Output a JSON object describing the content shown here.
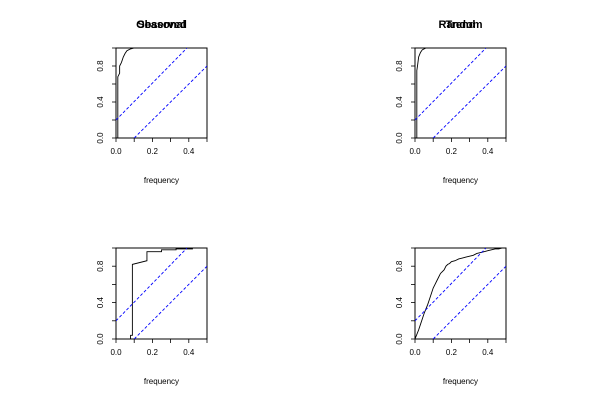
{
  "chart_data": [
    {
      "type": "line",
      "title": "Observed",
      "xlabel": "frequency",
      "ylabel": "",
      "xlim": [
        0,
        0.5
      ],
      "ylim": [
        0,
        1
      ],
      "xticks": [
        "0.0",
        "0.2",
        "0.4"
      ],
      "yticks": [
        "0.0",
        "0.4",
        "0.8"
      ],
      "grid": false,
      "series": [
        {
          "style": "solid",
          "color": "#000000",
          "x": [
            0,
            0.01,
            0.01,
            0.02,
            0.02,
            0.03,
            0.04,
            0.05,
            0.06,
            0.08,
            0.1,
            0.5
          ],
          "y": [
            0,
            0,
            0.68,
            0.72,
            0.8,
            0.84,
            0.9,
            0.94,
            0.97,
            0.99,
            1.0,
            1.0
          ]
        },
        {
          "style": "dashed",
          "color": "#0000ff",
          "x": [
            0,
            0.39
          ],
          "y": [
            0.2,
            1.0
          ]
        },
        {
          "style": "dashed",
          "color": "#0000ff",
          "x": [
            0.1,
            0.5
          ],
          "y": [
            0,
            0.8
          ]
        }
      ]
    },
    {
      "type": "line",
      "title": "Trend",
      "xlabel": "frequency",
      "ylabel": "",
      "xlim": [
        0,
        0.5
      ],
      "ylim": [
        0,
        1
      ],
      "xticks": [
        "0.0",
        "0.2",
        "0.4"
      ],
      "yticks": [
        "0.0",
        "0.4",
        "0.8"
      ],
      "grid": false,
      "series": [
        {
          "style": "solid",
          "color": "#000000",
          "x": [
            0,
            0.01,
            0.01,
            0.015,
            0.02,
            0.03,
            0.04,
            0.06,
            0.5
          ],
          "y": [
            0,
            0,
            0.75,
            0.82,
            0.9,
            0.95,
            0.98,
            1.0,
            1.0
          ]
        },
        {
          "style": "dashed",
          "color": "#0000ff",
          "x": [
            0,
            0.39
          ],
          "y": [
            0.2,
            1.0
          ]
        },
        {
          "style": "dashed",
          "color": "#0000ff",
          "x": [
            0.1,
            0.5
          ],
          "y": [
            0,
            0.8
          ]
        }
      ]
    },
    {
      "type": "line",
      "title": "Seasonal",
      "xlabel": "frequency",
      "ylabel": "",
      "xlim": [
        0,
        0.5
      ],
      "ylim": [
        0,
        1
      ],
      "xticks": [
        "0.0",
        "0.2",
        "0.4"
      ],
      "yticks": [
        "0.0",
        "0.4",
        "0.8"
      ],
      "grid": false,
      "series": [
        {
          "style": "solid",
          "color": "#000000",
          "x": [
            0,
            0.08,
            0.08,
            0.09,
            0.09,
            0.17,
            0.17,
            0.25,
            0.25,
            0.33,
            0.33,
            0.42,
            0.42,
            0.5
          ],
          "y": [
            0,
            0,
            0.04,
            0.04,
            0.82,
            0.86,
            0.96,
            0.96,
            0.98,
            0.98,
            0.99,
            0.99,
            1.0,
            1.0
          ]
        },
        {
          "style": "dashed",
          "color": "#0000ff",
          "x": [
            0,
            0.39
          ],
          "y": [
            0.2,
            1.0
          ]
        },
        {
          "style": "dashed",
          "color": "#0000ff",
          "x": [
            0.1,
            0.5
          ],
          "y": [
            0,
            0.8
          ]
        }
      ]
    },
    {
      "type": "line",
      "title": "Random",
      "xlabel": "frequency",
      "ylabel": "",
      "xlim": [
        0,
        0.5
      ],
      "ylim": [
        0,
        1
      ],
      "xticks": [
        "0.0",
        "0.2",
        "0.4"
      ],
      "yticks": [
        "0.0",
        "0.4",
        "0.8"
      ],
      "grid": false,
      "series": [
        {
          "style": "solid",
          "color": "#000000",
          "x": [
            0,
            0.01,
            0.02,
            0.03,
            0.04,
            0.05,
            0.06,
            0.07,
            0.08,
            0.09,
            0.1,
            0.11,
            0.12,
            0.13,
            0.14,
            0.15,
            0.16,
            0.17,
            0.18,
            0.19,
            0.2,
            0.22,
            0.24,
            0.26,
            0.28,
            0.3,
            0.32,
            0.34,
            0.36,
            0.38,
            0.4,
            0.42,
            0.44,
            0.46,
            0.48,
            0.5
          ],
          "y": [
            0,
            0.05,
            0.1,
            0.16,
            0.22,
            0.28,
            0.33,
            0.38,
            0.44,
            0.5,
            0.56,
            0.6,
            0.64,
            0.68,
            0.72,
            0.74,
            0.76,
            0.8,
            0.82,
            0.83,
            0.85,
            0.86,
            0.88,
            0.89,
            0.9,
            0.91,
            0.92,
            0.94,
            0.95,
            0.96,
            0.97,
            0.98,
            0.99,
            0.99,
            1.0,
            1.0
          ]
        },
        {
          "style": "dashed",
          "color": "#0000ff",
          "x": [
            0,
            0.39
          ],
          "y": [
            0.2,
            1.0
          ]
        },
        {
          "style": "dashed",
          "color": "#0000ff",
          "x": [
            0.1,
            0.5
          ],
          "y": [
            0,
            0.8
          ]
        }
      ]
    }
  ]
}
